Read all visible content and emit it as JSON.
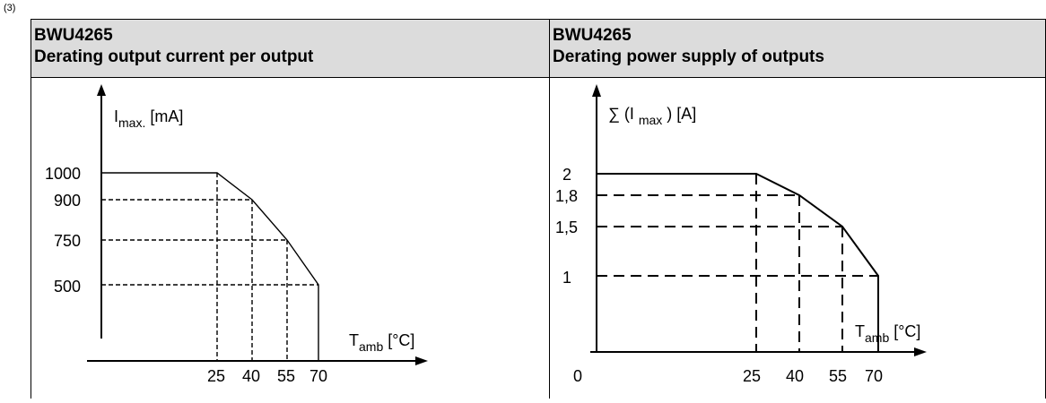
{
  "note": "(3)",
  "headers": [
    {
      "line1": "BWU4265",
      "line2": "Derating output current per output"
    },
    {
      "line1": "BWU4265",
      "line2": "Derating power supply of outputs"
    }
  ],
  "chart_data": [
    {
      "type": "line",
      "ylabel": {
        "main": "I",
        "sub": "max.",
        "unit": " [mA]"
      },
      "xlabel": {
        "main": "T",
        "sub": "amb",
        "unit": " [°C]"
      },
      "x_ticks": [
        "25",
        "40",
        "55",
        "70"
      ],
      "y_ticks": [
        "1000",
        "900",
        "750",
        "500"
      ],
      "series": [
        {
          "x": [
            0,
            25,
            40,
            55,
            70,
            70
          ],
          "y": [
            1000,
            1000,
            900,
            750,
            500,
            0
          ]
        }
      ]
    },
    {
      "type": "line",
      "ylabel": {
        "main": "∑ (I",
        "sub": "max",
        "unit": " ) [A]"
      },
      "xlabel": {
        "main": "T",
        "sub": "amb",
        "unit": " [°C]"
      },
      "x_ticks": [
        "25",
        "40",
        "55",
        "70"
      ],
      "y_ticks": [
        "2",
        "1,8",
        "1,5",
        "1"
      ],
      "origin_label": "0",
      "series": [
        {
          "x": [
            0,
            25,
            40,
            55,
            70,
            70
          ],
          "y": [
            2,
            2,
            1.8,
            1.5,
            1,
            0
          ]
        }
      ]
    }
  ]
}
